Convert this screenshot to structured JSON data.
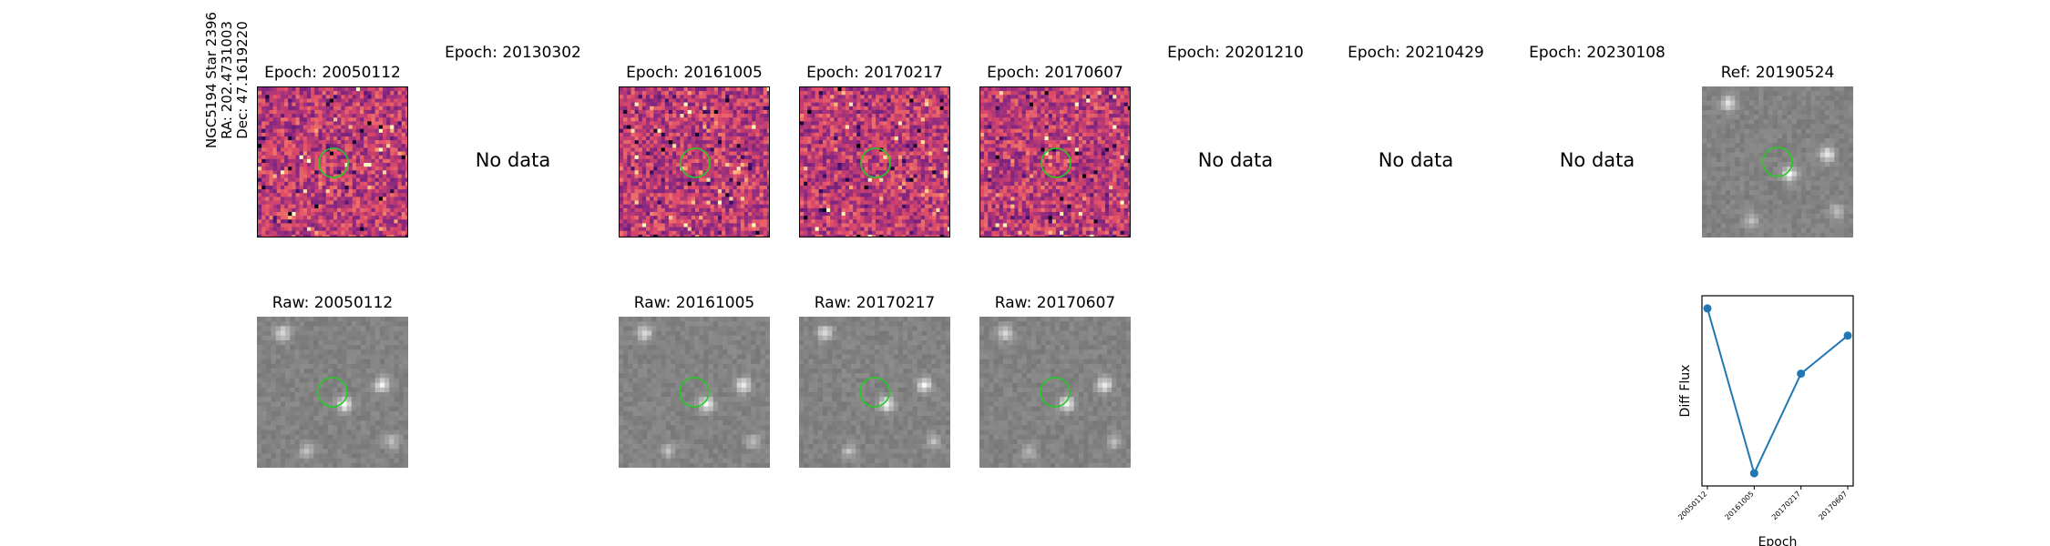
{
  "star_label": {
    "line1": "NGC5194 Star 2396",
    "line2": "RA: 202.4731003",
    "line3": "Dec: 47.1619220"
  },
  "top_row": [
    {
      "title": "Epoch: 20050112",
      "kind": "diff"
    },
    {
      "title": "Epoch: 20130302",
      "kind": "nodata",
      "nodata_text": "No data"
    },
    {
      "title": "Epoch: 20161005",
      "kind": "diff"
    },
    {
      "title": "Epoch: 20170217",
      "kind": "diff"
    },
    {
      "title": "Epoch: 20170607",
      "kind": "diff"
    },
    {
      "title": "Epoch: 20201210",
      "kind": "nodata",
      "nodata_text": "No data"
    },
    {
      "title": "Epoch: 20210429",
      "kind": "nodata",
      "nodata_text": "No data"
    },
    {
      "title": "Epoch: 20230108",
      "kind": "nodata",
      "nodata_text": "No data"
    },
    {
      "title": "Ref: 20190524",
      "kind": "ref"
    }
  ],
  "bottom_row": [
    {
      "title": "Raw: 20050112"
    },
    {
      "title": "Raw: 20161005"
    },
    {
      "title": "Raw: 20170217"
    },
    {
      "title": "Raw: 20170607"
    }
  ],
  "colors": {
    "marker_circle": "#22cc22",
    "line": "#1f77b4",
    "diff_cmap": "magma"
  },
  "chart_data": {
    "type": "line",
    "title": "",
    "xlabel": "Epoch",
    "ylabel": "Diff Flux",
    "categories": [
      "20050112",
      "20161005",
      "20170217",
      "20170607"
    ],
    "series": [
      {
        "values": [
          0.93,
          0.02,
          0.57,
          0.78
        ]
      }
    ],
    "ylim": [
      -0.05,
      1.0
    ],
    "y_tick_labels_shown": false,
    "grid": false,
    "marker": "circle"
  }
}
